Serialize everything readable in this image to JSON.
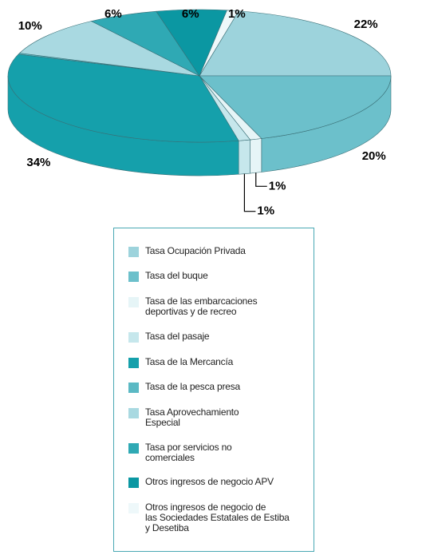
{
  "chart_data": {
    "type": "pie",
    "categories": [
      "Tasa Ocupación Privada",
      "Tasa del buque",
      "Tasa de las embarcaciones\ndeportivas y de recreo",
      "Tasa del pasaje",
      "Tasa de la Mercancía",
      "Tasa de la pesca presa",
      "Tasa Aprovechamiento\nEspecial",
      "Tasa por servicios no\n comerciales",
      "Otros ingresos de negocio APV",
      "Otros ingresos de negocio de\nlas Sociedades Estatales de Estiba\ny Desetiba"
    ],
    "values": [
      22,
      20,
      1,
      1,
      34,
      0.3,
      10,
      6,
      6,
      1
    ],
    "value_labels": [
      "22%",
      "20%",
      "1%",
      "1%",
      "34%",
      null,
      "10%",
      "6%",
      "6%",
      "1%"
    ],
    "colors": [
      "#9dd3dc",
      "#6cc0cb",
      "#e6f5f7",
      "#c6e7ec",
      "#15a0ab",
      "#5bb9c4",
      "#a9d9e1",
      "#2fa9b4",
      "#0b97a2",
      "#eef8fa"
    ]
  }
}
